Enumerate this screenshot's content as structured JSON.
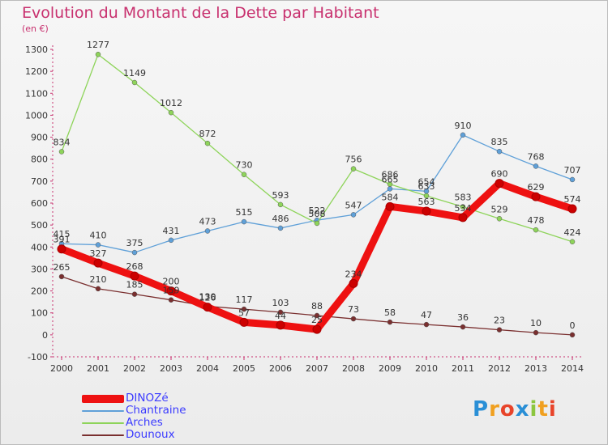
{
  "title": "Evolution du Montant de la Dette par Habitant",
  "unit_label": "(en €)",
  "logo": {
    "text": "Proxiti",
    "letters": [
      {
        "ch": "P",
        "color": "#2a8fd6"
      },
      {
        "ch": "r",
        "color": "#f0a020"
      },
      {
        "ch": "o",
        "color": "#e8442a"
      },
      {
        "ch": "x",
        "color": "#2a8fd6"
      },
      {
        "ch": "i",
        "color": "#8cc63f"
      },
      {
        "ch": "t",
        "color": "#f0a020"
      },
      {
        "ch": "i",
        "color": "#e8442a"
      }
    ]
  },
  "chart_data": {
    "type": "line",
    "title": "Evolution du Montant de la Dette par Habitant",
    "ylabel": "(en €)",
    "xlabel": "",
    "x": [
      "2000",
      "2001",
      "2002",
      "2003",
      "2004",
      "2005",
      "2006",
      "2007",
      "2008",
      "2009",
      "2010",
      "2011",
      "2012",
      "2013",
      "2014"
    ],
    "ylim": [
      -100,
      1300
    ],
    "yticks": [
      -100,
      0,
      100,
      200,
      300,
      400,
      500,
      600,
      700,
      800,
      900,
      1000,
      1100,
      1200,
      1300
    ],
    "grid": false,
    "legend_position": "bottom-left",
    "series": [
      {
        "name": "DINOZé",
        "color": "#ee1111",
        "values": [
          391,
          327,
          268,
          200,
          126,
          57,
          44,
          25,
          234,
          584,
          563,
          534,
          690,
          629,
          574
        ]
      },
      {
        "name": "Chantraine",
        "color": "#5fa0d8",
        "values": [
          415,
          410,
          375,
          431,
          473,
          515,
          486,
          522,
          547,
          665,
          654,
          910,
          835,
          768,
          707
        ]
      },
      {
        "name": "Arches",
        "color": "#8ed45a",
        "values": [
          834,
          1277,
          1149,
          1012,
          872,
          730,
          593,
          508,
          756,
          686,
          633,
          583,
          529,
          478,
          424
        ]
      },
      {
        "name": "Dounoux",
        "color": "#7a2f2f",
        "values": [
          265,
          210,
          185,
          159,
          130,
          117,
          103,
          88,
          73,
          58,
          47,
          36,
          23,
          10,
          0
        ]
      }
    ]
  }
}
